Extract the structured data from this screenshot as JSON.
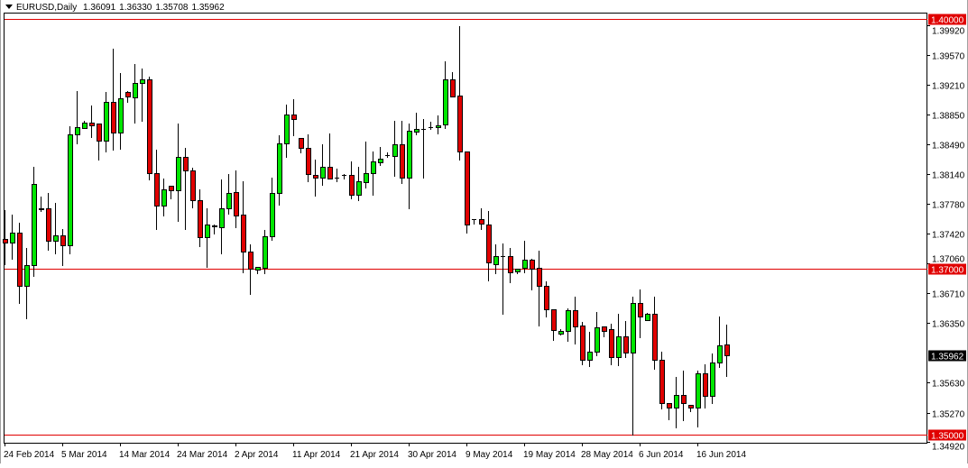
{
  "header": {
    "symbol": "EURUSD,Daily",
    "open": "1.36091",
    "high": "1.36330",
    "low": "1.35708",
    "close": "1.35962",
    "menu_icon": "triangle-down-icon"
  },
  "colors": {
    "bull": "#00e600",
    "bear": "#e00000",
    "level_line": "#e00000",
    "current_price_bg": "#000000",
    "axis": "#000000"
  },
  "chart_data": {
    "type": "candlestick",
    "title": "EURUSD,Daily",
    "ylim": [
      1.3487,
      1.407
    ],
    "grid": false,
    "candles_ohlc": [
      [
        1.3736,
        1.377,
        1.3705,
        1.3731
      ],
      [
        1.3731,
        1.3765,
        1.3712,
        1.3743
      ],
      [
        1.3743,
        1.3755,
        1.3659,
        1.3679
      ],
      [
        1.3679,
        1.3725,
        1.364,
        1.3704
      ],
      [
        1.3704,
        1.3822,
        1.3691,
        1.3802
      ],
      [
        1.3772,
        1.3787,
        1.3769,
        1.3771
      ],
      [
        1.3773,
        1.3791,
        1.3723,
        1.3733
      ],
      [
        1.3733,
        1.3779,
        1.3718,
        1.374
      ],
      [
        1.374,
        1.3748,
        1.3704,
        1.3728
      ],
      [
        1.3728,
        1.3871,
        1.3718,
        1.3861
      ],
      [
        1.3861,
        1.3913,
        1.3851,
        1.387
      ],
      [
        1.3869,
        1.3878,
        1.3869,
        1.3875
      ],
      [
        1.3875,
        1.3896,
        1.3858,
        1.3872
      ],
      [
        1.3874,
        1.3874,
        1.3831,
        1.3854
      ],
      [
        1.3854,
        1.3912,
        1.3841,
        1.39
      ],
      [
        1.39,
        1.3964,
        1.3843,
        1.3864
      ],
      [
        1.3864,
        1.3935,
        1.3844,
        1.3905
      ],
      [
        1.3912,
        1.3913,
        1.39,
        1.3907
      ],
      [
        1.3906,
        1.3946,
        1.3875,
        1.3923
      ],
      [
        1.3923,
        1.394,
        1.3878,
        1.3927
      ],
      [
        1.3927,
        1.3931,
        1.3807,
        1.3815
      ],
      [
        1.3815,
        1.3843,
        1.3748,
        1.3776
      ],
      [
        1.3776,
        1.3808,
        1.3764,
        1.3795
      ],
      [
        1.38,
        1.38,
        1.3784,
        1.3794
      ],
      [
        1.3794,
        1.3874,
        1.3757,
        1.3834
      ],
      [
        1.3834,
        1.3845,
        1.3748,
        1.3818
      ],
      [
        1.3818,
        1.3821,
        1.3774,
        1.3782
      ],
      [
        1.3782,
        1.3795,
        1.3727,
        1.3738
      ],
      [
        1.3738,
        1.3772,
        1.3702,
        1.3753
      ],
      [
        1.3752,
        1.3753,
        1.3742,
        1.3751
      ],
      [
        1.375,
        1.3807,
        1.3718,
        1.3772
      ],
      [
        1.3772,
        1.3814,
        1.3766,
        1.3791
      ],
      [
        1.3792,
        1.3818,
        1.375,
        1.3764
      ],
      [
        1.3765,
        1.3805,
        1.3696,
        1.3721
      ],
      [
        1.3721,
        1.3729,
        1.367,
        1.37
      ],
      [
        1.3699,
        1.3702,
        1.3695,
        1.3702
      ],
      [
        1.3701,
        1.3747,
        1.3695,
        1.3739
      ],
      [
        1.3739,
        1.3809,
        1.3735,
        1.3791
      ],
      [
        1.3791,
        1.386,
        1.3777,
        1.3851
      ],
      [
        1.3851,
        1.3897,
        1.3834,
        1.3885
      ],
      [
        1.3885,
        1.3904,
        1.386,
        1.388
      ],
      [
        1.3857,
        1.3857,
        1.384,
        1.3845
      ],
      [
        1.3845,
        1.3861,
        1.3805,
        1.3814
      ],
      [
        1.3813,
        1.3831,
        1.3788,
        1.3809
      ],
      [
        1.3809,
        1.3849,
        1.3801,
        1.3822
      ],
      [
        1.3822,
        1.3862,
        1.3808,
        1.3808
      ],
      [
        1.3809,
        1.382,
        1.3805,
        1.3809
      ],
      [
        1.3813,
        1.3814,
        1.3808,
        1.3813
      ],
      [
        1.3813,
        1.3829,
        1.3784,
        1.3789
      ],
      [
        1.3789,
        1.3822,
        1.3782,
        1.3805
      ],
      [
        1.3804,
        1.3853,
        1.3797,
        1.3815
      ],
      [
        1.3815,
        1.3841,
        1.3789,
        1.3829
      ],
      [
        1.3828,
        1.3846,
        1.3825,
        1.3832
      ],
      [
        1.3836,
        1.384,
        1.3834,
        1.3836
      ],
      [
        1.3835,
        1.3878,
        1.3812,
        1.3849
      ],
      [
        1.3849,
        1.3878,
        1.3803,
        1.3809
      ],
      [
        1.3809,
        1.3874,
        1.3772,
        1.3866
      ],
      [
        1.3865,
        1.3887,
        1.3861,
        1.3868
      ],
      [
        1.3868,
        1.388,
        1.3809,
        1.3868
      ],
      [
        1.387,
        1.3877,
        1.3868,
        1.387
      ],
      [
        1.387,
        1.3884,
        1.3862,
        1.3872
      ],
      [
        1.3873,
        1.3949,
        1.3869,
        1.3927
      ],
      [
        1.3927,
        1.3936,
        1.3907,
        1.3907
      ],
      [
        1.3908,
        1.3991,
        1.3831,
        1.3841
      ],
      [
        1.3841,
        1.3841,
        1.3743,
        1.3753
      ],
      [
        1.3759,
        1.376,
        1.3754,
        1.3759
      ],
      [
        1.3759,
        1.3773,
        1.3748,
        1.3754
      ],
      [
        1.3753,
        1.3769,
        1.3686,
        1.3707
      ],
      [
        1.3705,
        1.3729,
        1.3695,
        1.3715
      ],
      [
        1.3715,
        1.373,
        1.3646,
        1.3715
      ],
      [
        1.3715,
        1.3725,
        1.3684,
        1.3696
      ],
      [
        1.3697,
        1.37,
        1.3694,
        1.37
      ],
      [
        1.3701,
        1.3733,
        1.3696,
        1.3711
      ],
      [
        1.3711,
        1.3712,
        1.3675,
        1.37
      ],
      [
        1.3701,
        1.3722,
        1.3632,
        1.3679
      ],
      [
        1.3679,
        1.3685,
        1.3643,
        1.3651
      ],
      [
        1.3651,
        1.3651,
        1.3614,
        1.3626
      ],
      [
        1.3622,
        1.3627,
        1.3621,
        1.3625
      ],
      [
        1.3625,
        1.3652,
        1.3613,
        1.365
      ],
      [
        1.365,
        1.3666,
        1.361,
        1.3631
      ],
      [
        1.3632,
        1.3636,
        1.3585,
        1.359
      ],
      [
        1.359,
        1.3624,
        1.3583,
        1.36
      ],
      [
        1.36,
        1.3648,
        1.3596,
        1.363
      ],
      [
        1.3631,
        1.3631,
        1.3619,
        1.3625
      ],
      [
        1.3627,
        1.3634,
        1.3585,
        1.3594
      ],
      [
        1.3594,
        1.3646,
        1.3584,
        1.3619
      ],
      [
        1.3619,
        1.3637,
        1.3594,
        1.3599
      ],
      [
        1.3599,
        1.3666,
        1.35,
        1.3659
      ],
      [
        1.3659,
        1.3675,
        1.3618,
        1.3642
      ],
      [
        1.3638,
        1.3647,
        1.3638,
        1.3646
      ],
      [
        1.3646,
        1.3666,
        1.358,
        1.359
      ],
      [
        1.3591,
        1.36,
        1.3532,
        1.3538
      ],
      [
        1.3538,
        1.3538,
        1.3519,
        1.3533
      ],
      [
        1.3533,
        1.357,
        1.3509,
        1.3548
      ],
      [
        1.3548,
        1.3578,
        1.3518,
        1.3538
      ],
      [
        1.3536,
        1.3536,
        1.3529,
        1.3533
      ],
      [
        1.3533,
        1.3578,
        1.351,
        1.3574
      ],
      [
        1.3574,
        1.3585,
        1.3533,
        1.3547
      ],
      [
        1.3547,
        1.3598,
        1.3539,
        1.3587
      ],
      [
        1.3587,
        1.3642,
        1.3582,
        1.3608
      ],
      [
        1.36091,
        1.3633,
        1.35708,
        1.35962
      ]
    ],
    "y_tick_labels": [
      "1.39920",
      "1.39570",
      "1.39210",
      "1.38850",
      "1.38490",
      "1.38140",
      "1.37780",
      "1.37420",
      "1.37060",
      "1.36710",
      "1.36350",
      "1.35630",
      "1.35270",
      "1.34920"
    ],
    "x_tick_labels": [
      {
        "label": "24 Feb 2014",
        "bar": 0
      },
      {
        "label": "5 Mar 2014",
        "bar": 8
      },
      {
        "label": "14 Mar 2014",
        "bar": 16
      },
      {
        "label": "24 Mar 2014",
        "bar": 24
      },
      {
        "label": "2 Apr 2014",
        "bar": 32
      },
      {
        "label": "11 Apr 2014",
        "bar": 40
      },
      {
        "label": "21 Apr 2014",
        "bar": 48
      },
      {
        "label": "30 Apr 2014",
        "bar": 56
      },
      {
        "label": "9 May 2014",
        "bar": 64
      },
      {
        "label": "19 May 2014",
        "bar": 72
      },
      {
        "label": "28 May 2014",
        "bar": 80
      },
      {
        "label": "6 Jun 2014",
        "bar": 88
      },
      {
        "label": "16 Jun 2014",
        "bar": 96
      }
    ],
    "horizontal_levels": [
      "1.40000",
      "1.37000",
      "1.35000"
    ],
    "current_price": "1.35962"
  }
}
